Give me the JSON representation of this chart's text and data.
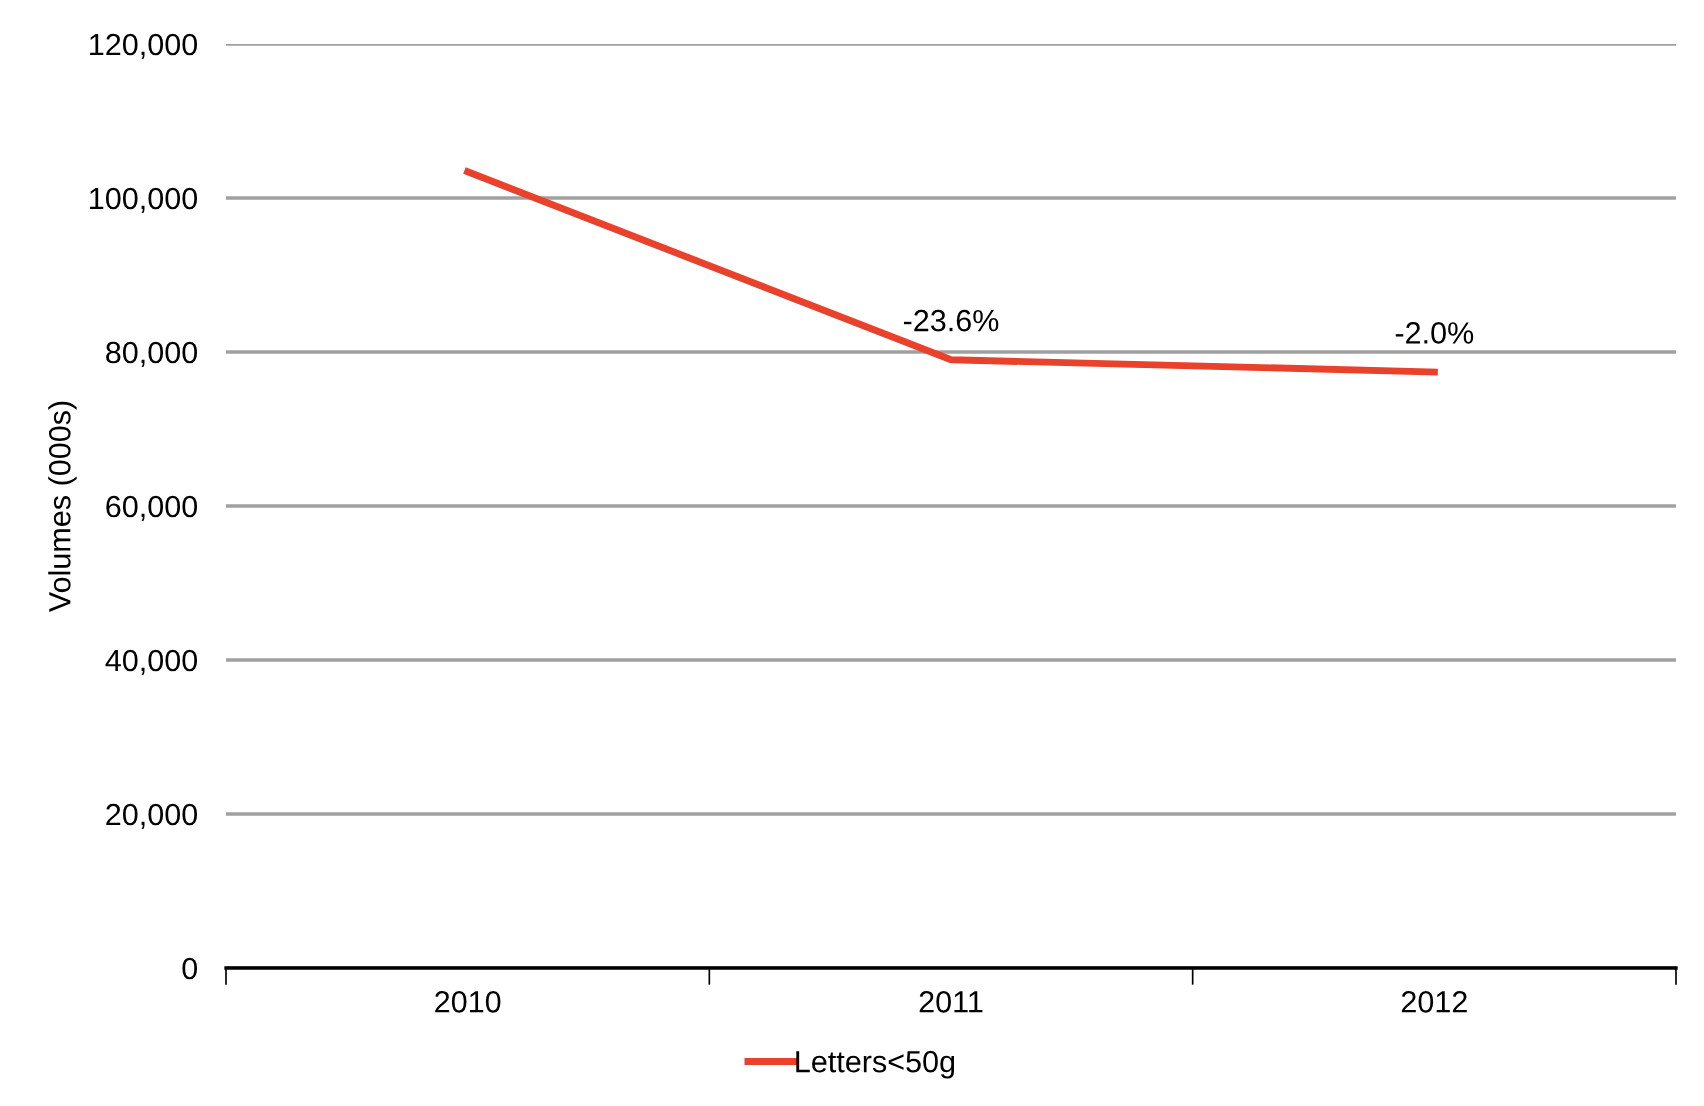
{
  "chart_data": {
    "type": "line",
    "ylabel": "Volumes (000s)",
    "categories": [
      "2010",
      "2011",
      "2012"
    ],
    "series": [
      {
        "name": "Letters<50g",
        "color": "#e8412c",
        "values": [
          103400,
          79000,
          77400
        ]
      }
    ],
    "ylim": [
      0,
      120000
    ],
    "yticks": [
      {
        "value": 0,
        "label": "0"
      },
      {
        "value": 20000,
        "label": "20,000"
      },
      {
        "value": 40000,
        "label": "40,000"
      },
      {
        "value": 60000,
        "label": "60,000"
      },
      {
        "value": 80000,
        "label": "80,000"
      },
      {
        "value": 100000,
        "label": "100,000"
      },
      {
        "value": 120000,
        "label": "120,000"
      }
    ],
    "grid": "y",
    "legend": "bottom",
    "marker": "none",
    "line_style": "solid",
    "annotations": [
      {
        "text": "-23.6%",
        "x": "2011",
        "y": 79000
      },
      {
        "text": "-2.0%",
        "x": "2012",
        "y": 77400
      }
    ]
  }
}
